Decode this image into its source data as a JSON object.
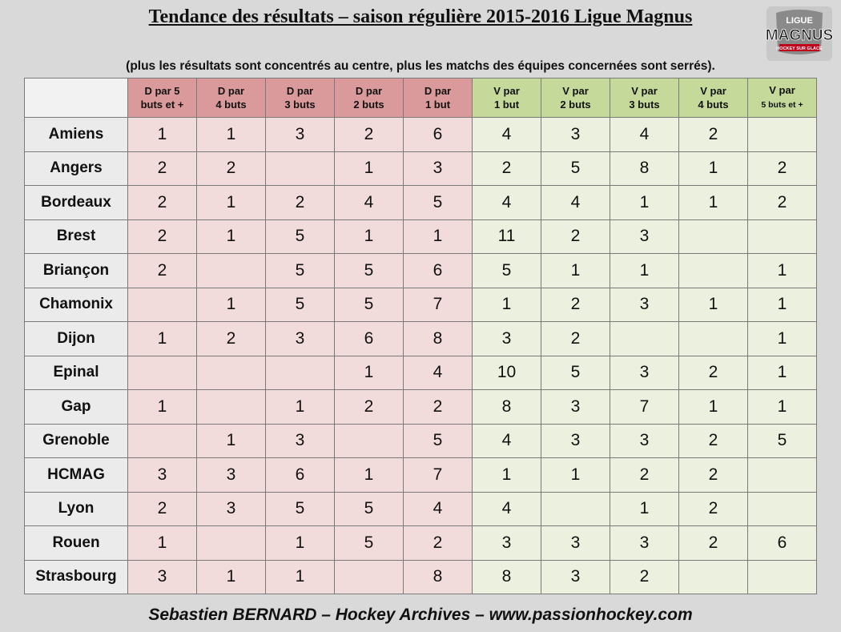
{
  "title": "Tendance des résultats – saison régulière 2015-2016 Ligue Magnus",
  "subtitle": "(plus les résultats sont concentrés au centre, plus les matchs des équipes concernées sont serrés).",
  "logo": {
    "line1": "LIGUE",
    "line2": "MAGNUS",
    "line3": "HOCKEY SUR GLACE"
  },
  "colors": {
    "loss_header": "#da9a9b",
    "loss_cell": "#f2dcdb",
    "win_header": "#c5da9a",
    "win_cell": "#ebf1de",
    "background": "#d9d9d9"
  },
  "headers": [
    {
      "l1": "D par 5",
      "l2": "buts et +"
    },
    {
      "l1": "D par",
      "l2": "4 buts"
    },
    {
      "l1": "D par",
      "l2": "3 buts"
    },
    {
      "l1": "D par",
      "l2": "2 buts"
    },
    {
      "l1": "D par",
      "l2": "1 but"
    },
    {
      "l1": "V par",
      "l2": "1 but"
    },
    {
      "l1": "V par",
      "l2": "2 buts"
    },
    {
      "l1": "V par",
      "l2": "3 buts"
    },
    {
      "l1": "V par",
      "l2": "4 buts"
    },
    {
      "l1": "V par",
      "l2": "5 buts et +"
    }
  ],
  "rows": [
    {
      "team": "Amiens",
      "values": [
        "1",
        "1",
        "3",
        "2",
        "6",
        "4",
        "3",
        "4",
        "2",
        ""
      ]
    },
    {
      "team": "Angers",
      "values": [
        "2",
        "2",
        "",
        "1",
        "3",
        "2",
        "5",
        "8",
        "1",
        "2"
      ]
    },
    {
      "team": "Bordeaux",
      "values": [
        "2",
        "1",
        "2",
        "4",
        "5",
        "4",
        "4",
        "1",
        "1",
        "2"
      ]
    },
    {
      "team": "Brest",
      "values": [
        "2",
        "1",
        "5",
        "1",
        "1",
        "11",
        "2",
        "3",
        "",
        ""
      ]
    },
    {
      "team": "Briançon",
      "values": [
        "2",
        "",
        "5",
        "5",
        "6",
        "5",
        "1",
        "1",
        "",
        "1"
      ]
    },
    {
      "team": "Chamonix",
      "values": [
        "",
        "1",
        "5",
        "5",
        "7",
        "1",
        "2",
        "3",
        "1",
        "1"
      ]
    },
    {
      "team": "Dijon",
      "values": [
        "1",
        "2",
        "3",
        "6",
        "8",
        "3",
        "2",
        "",
        "",
        "1"
      ]
    },
    {
      "team": "Epinal",
      "values": [
        "",
        "",
        "",
        "1",
        "4",
        "10",
        "5",
        "3",
        "2",
        "1"
      ]
    },
    {
      "team": "Gap",
      "values": [
        "1",
        "",
        "1",
        "2",
        "2",
        "8",
        "3",
        "7",
        "1",
        "1"
      ]
    },
    {
      "team": "Grenoble",
      "values": [
        "",
        "1",
        "3",
        "",
        "5",
        "4",
        "3",
        "3",
        "2",
        "5"
      ]
    },
    {
      "team": "HCMAG",
      "values": [
        "3",
        "3",
        "6",
        "1",
        "7",
        "1",
        "1",
        "2",
        "2",
        ""
      ]
    },
    {
      "team": "Lyon",
      "values": [
        "2",
        "3",
        "5",
        "5",
        "4",
        "4",
        "",
        "1",
        "2",
        ""
      ]
    },
    {
      "team": "Rouen",
      "values": [
        "1",
        "",
        "1",
        "5",
        "2",
        "3",
        "3",
        "3",
        "2",
        "6"
      ]
    },
    {
      "team": "Strasbourg",
      "values": [
        "3",
        "1",
        "1",
        "",
        "8",
        "8",
        "3",
        "2",
        "",
        ""
      ]
    }
  ],
  "footer": "Sebastien BERNARD – Hockey Archives – www.passionhockey.com"
}
